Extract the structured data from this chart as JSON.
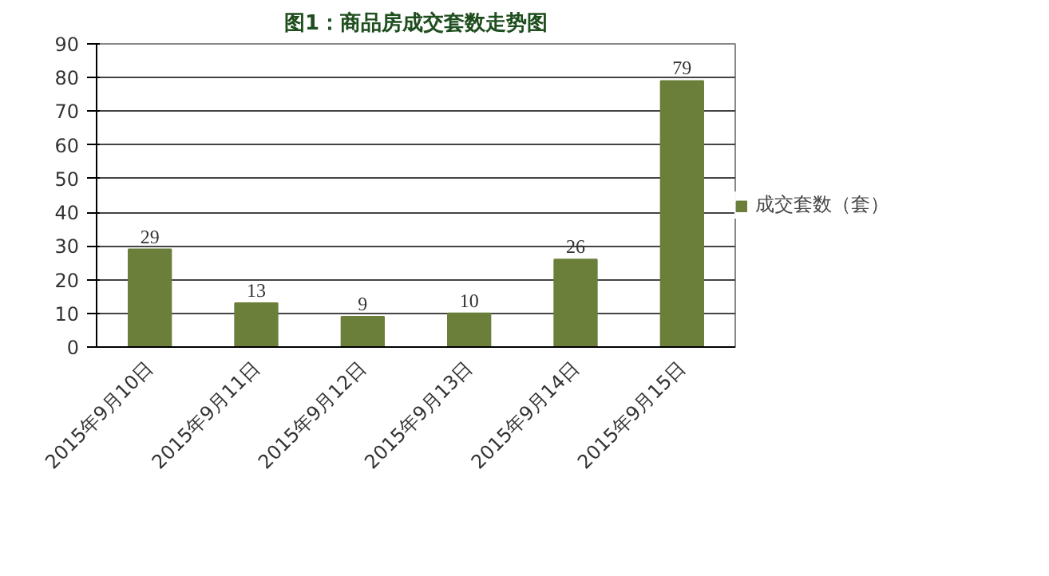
{
  "chart_data": {
    "type": "bar",
    "title": "图1：商品房成交套数走势图",
    "categories": [
      "2015年9月10日",
      "2015年9月11日",
      "2015年9月12日",
      "2015年9月13日",
      "2015年9月14日",
      "2015年9月15日"
    ],
    "series": [
      {
        "name": "成交套数（套）",
        "color": "#6b7f3a",
        "values": [
          29,
          13,
          9,
          10,
          26,
          79
        ]
      }
    ],
    "ylim": [
      0,
      90
    ],
    "yticks": [
      0,
      10,
      20,
      30,
      40,
      50,
      60,
      70,
      80,
      90
    ],
    "grid": "y",
    "legend": "right",
    "data_labels": true
  }
}
